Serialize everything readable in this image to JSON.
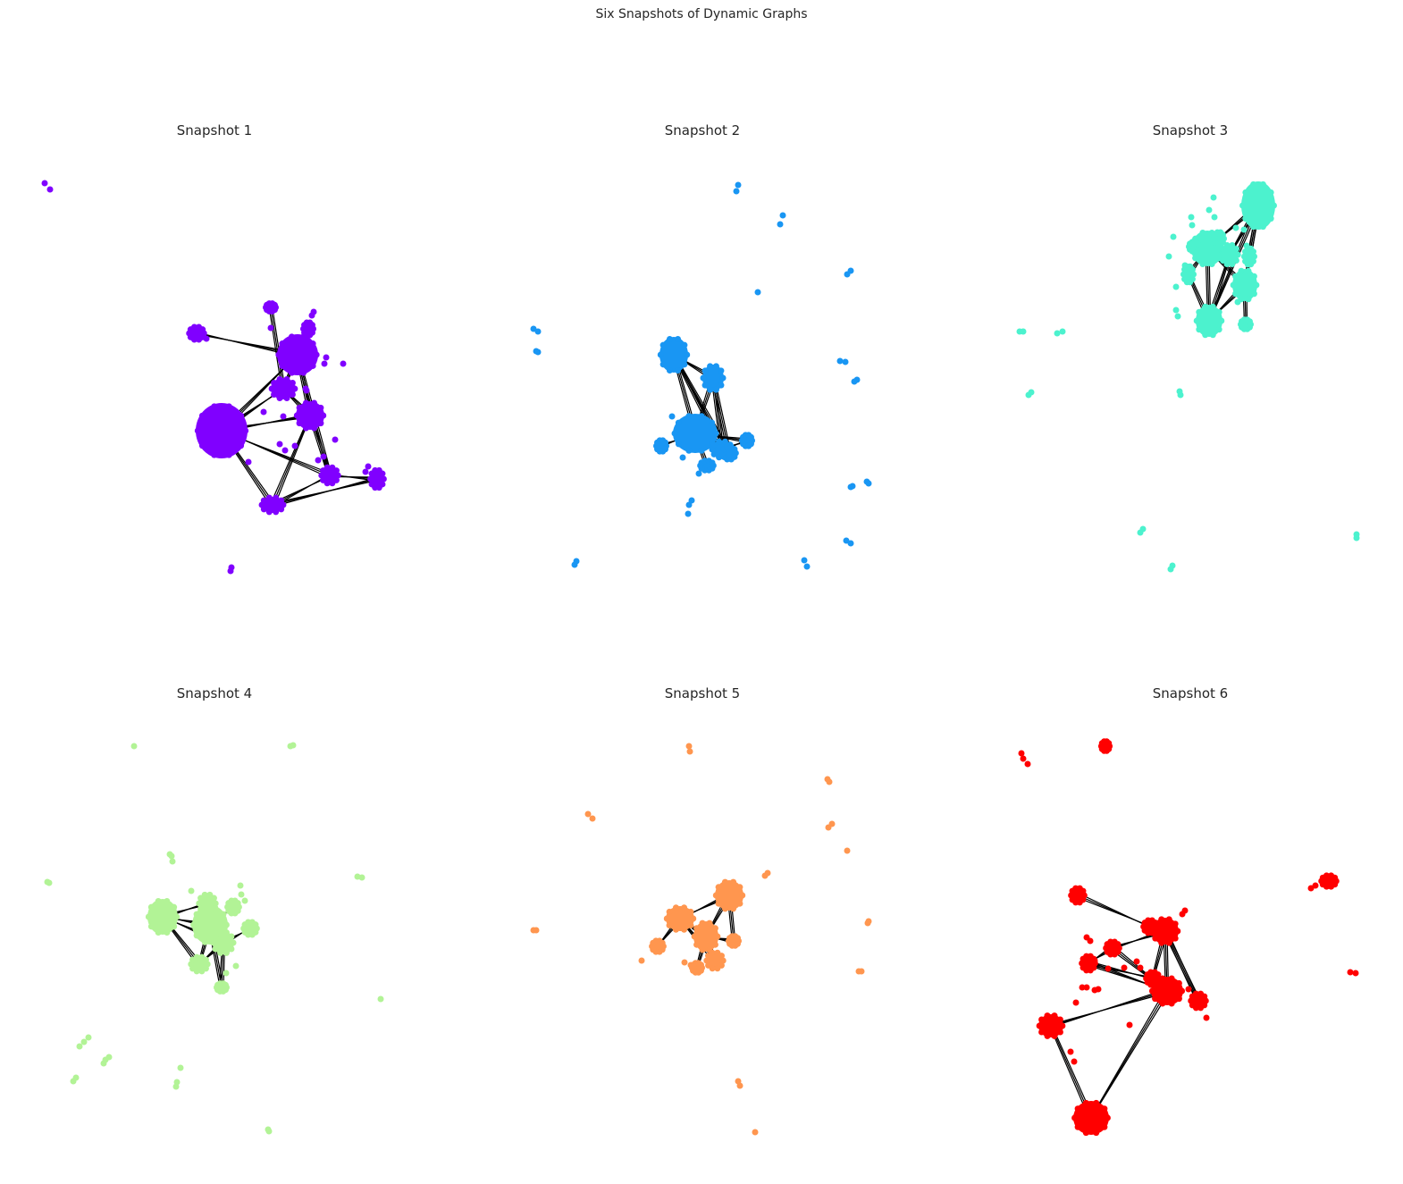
{
  "title": "Six Snapshots of Dynamic Graphs",
  "snapshots": [
    {
      "title": "Snapshot 1",
      "node_color": "#8000ff"
    },
    {
      "title": "Snapshot 2",
      "node_color": "#1996f3"
    },
    {
      "title": "Snapshot 3",
      "node_color": "#4cf2ce"
    },
    {
      "title": "Snapshot 4",
      "node_color": "#b2f396"
    },
    {
      "title": "Snapshot 5",
      "node_color": "#ff964f"
    },
    {
      "title": "Snapshot 6",
      "node_color": "#ff0000"
    }
  ],
  "edge_color": "#000000"
}
